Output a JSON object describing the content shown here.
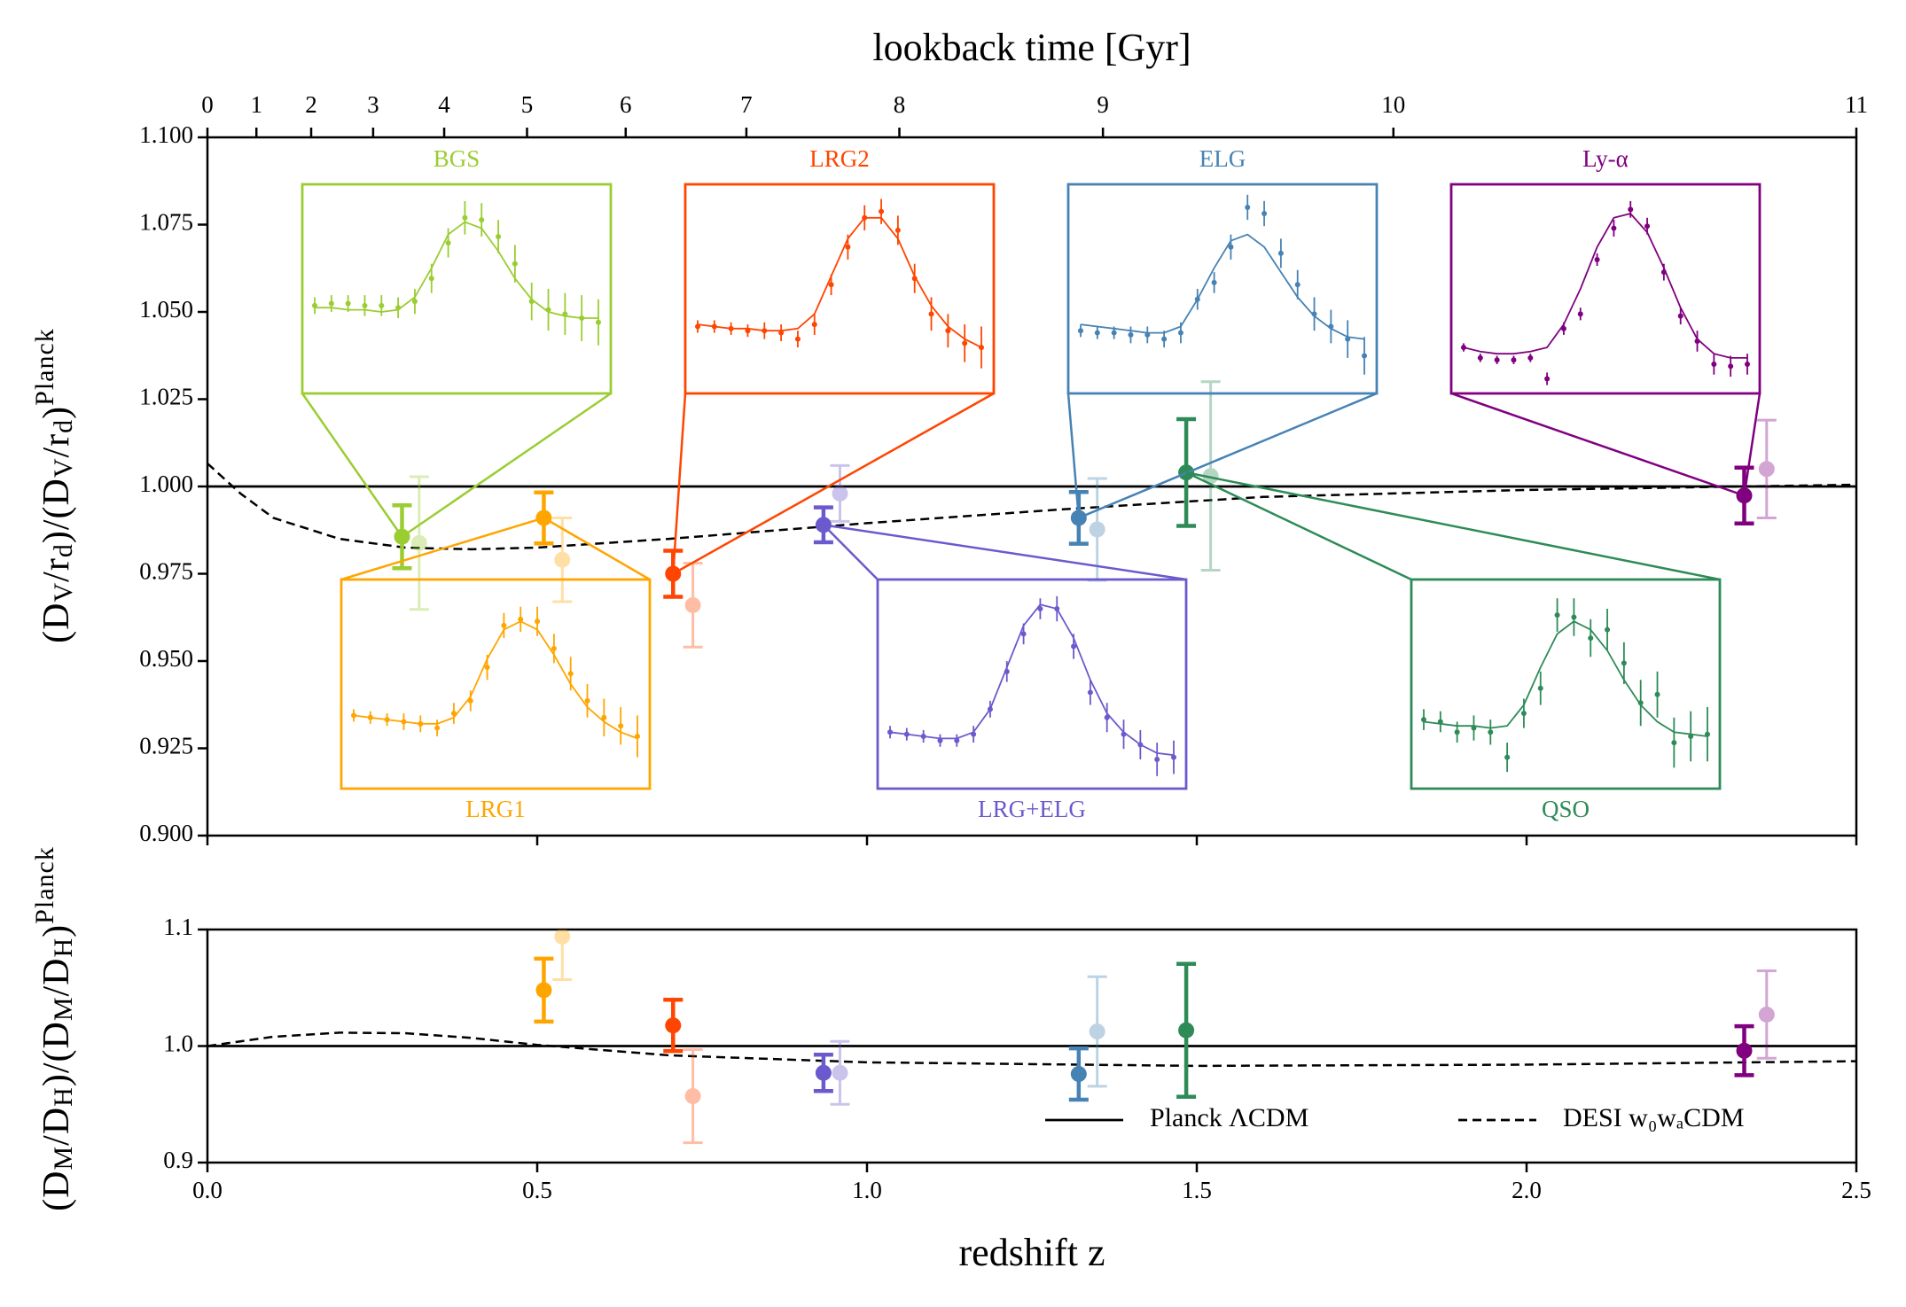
{
  "chart_data": [
    {
      "type": "errorbar",
      "x2label": "lookback time [Gyr]",
      "x2lim": [
        0,
        11
      ],
      "x2ticks": [
        0,
        1,
        2,
        3,
        4,
        5,
        6,
        7,
        8,
        9,
        10,
        11
      ],
      "ylabel": [
        "(D",
        "V",
        "/r",
        "d",
        ")/(D",
        "V",
        "/r",
        "d",
        ")",
        "Planck"
      ],
      "xlim": [
        0,
        2.5
      ],
      "ylim": [
        0.9,
        1.1
      ],
      "yticks": [
        {
          "value": 0.9,
          "label": "0.900"
        },
        0.925,
        {
          "value": 0.95,
          "label": "0.950"
        },
        0.975,
        {
          "value": 1.0,
          "label": "1.000"
        },
        1.025,
        {
          "value": 1.05,
          "label": "1.050"
        },
        1.075,
        {
          "value": 1.1,
          "label": "1.100"
        }
      ],
      "lines": [
        {
          "x": [
            0,
            2.5
          ],
          "values": [
            1,
            1
          ],
          "dash": false
        },
        {
          "x": [
            0,
            0.05,
            0.1,
            0.2,
            0.3,
            0.4,
            0.5,
            0.7,
            1.0,
            1.3,
            1.6,
            2.0,
            2.5
          ],
          "values": [
            1.0066,
            0.998,
            0.991,
            0.985,
            0.9825,
            0.982,
            0.9825,
            0.985,
            0.9895,
            0.9935,
            0.997,
            0.999,
            1.0005
          ],
          "dash": true
        }
      ],
      "series": [
        {
          "name": "BGS",
          "color": "#9acd32",
          "x": [
            0.295,
            0.321
          ],
          "values": [
            0.9856,
            0.9838
          ],
          "errors": [
            0.009,
            0.019
          ],
          "inset": {
            "values": [
              0.42,
              0.43,
              0.43,
              0.42,
              0.42,
              0.41,
              0.44,
              0.55,
              0.72,
              0.84,
              0.83,
              0.75,
              0.62,
              0.44,
              0.4,
              0.38,
              0.36,
              0.34
            ],
            "model": [
              0.41,
              0.41,
              0.4,
              0.4,
              0.39,
              0.4,
              0.46,
              0.6,
              0.76,
              0.82,
              0.79,
              0.68,
              0.55,
              0.45,
              0.39,
              0.37,
              0.36,
              0.36
            ],
            "errors": [
              0.04,
              0.04,
              0.04,
              0.05,
              0.05,
              0.05,
              0.06,
              0.07,
              0.07,
              0.08,
              0.08,
              0.08,
              0.09,
              0.09,
              0.1,
              0.1,
              0.11,
              0.11
            ]
          }
        },
        {
          "name": "LRG1",
          "color": "#ffa500",
          "x": [
            0.51,
            0.538
          ],
          "values": [
            0.991,
            0.979
          ],
          "errors": [
            0.0073,
            0.012
          ],
          "inset": {
            "values": [
              0.35,
              0.34,
              0.33,
              0.32,
              0.31,
              0.29,
              0.36,
              0.42,
              0.58,
              0.78,
              0.81,
              0.8,
              0.67,
              0.55,
              0.42,
              0.34,
              0.3,
              0.25
            ],
            "model": [
              0.35,
              0.34,
              0.33,
              0.32,
              0.31,
              0.31,
              0.34,
              0.44,
              0.62,
              0.76,
              0.8,
              0.76,
              0.64,
              0.5,
              0.39,
              0.32,
              0.27,
              0.24
            ],
            "errors": [
              0.03,
              0.03,
              0.03,
              0.04,
              0.04,
              0.04,
              0.05,
              0.05,
              0.06,
              0.06,
              0.06,
              0.07,
              0.07,
              0.08,
              0.08,
              0.09,
              0.09,
              0.1
            ]
          }
        },
        {
          "name": "LRG2",
          "color": "#ff4500",
          "x": [
            0.706,
            0.736
          ],
          "values": [
            0.975,
            0.966
          ],
          "errors": [
            0.0066,
            0.012
          ],
          "inset": {
            "values": [
              0.32,
              0.32,
              0.31,
              0.3,
              0.3,
              0.29,
              0.26,
              0.33,
              0.52,
              0.7,
              0.84,
              0.87,
              0.78,
              0.55,
              0.38,
              0.3,
              0.24,
              0.22
            ],
            "model": [
              0.33,
              0.32,
              0.31,
              0.31,
              0.3,
              0.3,
              0.31,
              0.38,
              0.56,
              0.74,
              0.84,
              0.84,
              0.74,
              0.56,
              0.42,
              0.32,
              0.26,
              0.22
            ],
            "errors": [
              0.03,
              0.03,
              0.03,
              0.03,
              0.04,
              0.04,
              0.04,
              0.05,
              0.05,
              0.06,
              0.06,
              0.06,
              0.07,
              0.07,
              0.08,
              0.08,
              0.09,
              0.1
            ]
          }
        },
        {
          "name": "LRG+ELG",
          "color": "#6a5acd",
          "x": [
            0.934,
            0.959
          ],
          "values": [
            0.989,
            0.998
          ],
          "errors": [
            0.005,
            0.008
          ],
          "inset": {
            "values": [
              0.27,
              0.26,
              0.25,
              0.23,
              0.23,
              0.26,
              0.38,
              0.56,
              0.74,
              0.86,
              0.86,
              0.68,
              0.46,
              0.34,
              0.26,
              0.21,
              0.14,
              0.15
            ],
            "model": [
              0.27,
              0.26,
              0.25,
              0.24,
              0.24,
              0.27,
              0.38,
              0.58,
              0.78,
              0.88,
              0.86,
              0.72,
              0.52,
              0.36,
              0.27,
              0.21,
              0.17,
              0.16
            ],
            "errors": [
              0.03,
              0.03,
              0.03,
              0.03,
              0.03,
              0.04,
              0.04,
              0.05,
              0.05,
              0.05,
              0.06,
              0.06,
              0.06,
              0.07,
              0.07,
              0.07,
              0.08,
              0.08
            ]
          }
        },
        {
          "name": "ELG",
          "color": "#4682b4",
          "x": [
            1.321,
            1.349
          ],
          "values": [
            0.991,
            0.9877
          ],
          "errors": [
            0.0074,
            0.0146
          ],
          "inset": {
            "values": [
              0.3,
              0.29,
              0.29,
              0.28,
              0.28,
              0.26,
              0.29,
              0.45,
              0.53,
              0.7,
              0.89,
              0.86,
              0.67,
              0.52,
              0.38,
              0.32,
              0.26,
              0.18
            ],
            "model": [
              0.33,
              0.32,
              0.31,
              0.3,
              0.29,
              0.29,
              0.32,
              0.45,
              0.6,
              0.73,
              0.76,
              0.7,
              0.58,
              0.46,
              0.37,
              0.31,
              0.27,
              0.26
            ],
            "errors": [
              0.03,
              0.03,
              0.03,
              0.04,
              0.04,
              0.04,
              0.05,
              0.05,
              0.05,
              0.06,
              0.06,
              0.06,
              0.07,
              0.07,
              0.08,
              0.08,
              0.09,
              0.09
            ]
          }
        },
        {
          "name": "QSO",
          "color": "#2e8b57",
          "x": [
            1.484,
            1.521
          ],
          "values": [
            1.004,
            1.003
          ],
          "errors": [
            0.0153,
            0.027
          ],
          "inset": {
            "values": [
              0.33,
              0.32,
              0.27,
              0.29,
              0.27,
              0.15,
              0.36,
              0.48,
              0.83,
              0.82,
              0.72,
              0.76,
              0.6,
              0.41,
              0.45,
              0.22,
              0.25,
              0.26
            ],
            "model": [
              0.32,
              0.31,
              0.3,
              0.3,
              0.29,
              0.3,
              0.4,
              0.58,
              0.74,
              0.8,
              0.76,
              0.66,
              0.52,
              0.4,
              0.32,
              0.27,
              0.26,
              0.25
            ],
            "errors": [
              0.05,
              0.05,
              0.05,
              0.06,
              0.06,
              0.07,
              0.07,
              0.08,
              0.08,
              0.09,
              0.09,
              0.1,
              0.1,
              0.11,
              0.11,
              0.12,
              0.12,
              0.13
            ]
          }
        },
        {
          "name": "Ly-α",
          "color": "#800080",
          "x": [
            2.33,
            2.364
          ],
          "values": [
            0.9974,
            1.005
          ],
          "errors": [
            0.008,
            0.014
          ],
          "inset": {
            "values": [
              0.22,
              0.17,
              0.16,
              0.16,
              0.17,
              0.07,
              0.31,
              0.38,
              0.64,
              0.79,
              0.88,
              0.8,
              0.58,
              0.37,
              0.25,
              0.14,
              0.13,
              0.14
            ],
            "model": [
              0.22,
              0.2,
              0.19,
              0.19,
              0.2,
              0.22,
              0.33,
              0.5,
              0.7,
              0.84,
              0.86,
              0.77,
              0.6,
              0.41,
              0.26,
              0.19,
              0.17,
              0.17
            ],
            "errors": [
              0.02,
              0.02,
              0.02,
              0.02,
              0.02,
              0.03,
              0.03,
              0.03,
              0.03,
              0.04,
              0.04,
              0.04,
              0.04,
              0.04,
              0.05,
              0.05,
              0.05,
              0.05
            ]
          }
        }
      ]
    },
    {
      "type": "errorbar",
      "xlabel": "redshift z",
      "ylabel": [
        "(D",
        "M",
        "/D",
        "H",
        ")/(D",
        "M",
        "/D",
        "H",
        ")",
        "Planck"
      ],
      "xlim": [
        0,
        2.5
      ],
      "xticks": [
        {
          "value": 0,
          "label": "0.0"
        },
        0.5,
        {
          "value": 1,
          "label": "1.0"
        },
        1.5,
        {
          "value": 2,
          "label": "2.0"
        },
        2.5
      ],
      "ylim": [
        0.9,
        1.1
      ],
      "yticks": [
        0.9,
        {
          "value": 1.0,
          "label": "1.0"
        },
        1.1
      ],
      "legend": "lower right",
      "lines": [
        {
          "name": "Planck ΛCDM",
          "x": [
            0,
            2.5
          ],
          "values": [
            1,
            1
          ],
          "dash": false
        },
        {
          "name": "DESI w₀wₐCDM",
          "x": [
            0,
            0.1,
            0.2,
            0.3,
            0.4,
            0.5,
            0.7,
            1.0,
            1.5,
            2.0,
            2.5
          ],
          "values": [
            1.0,
            1.008,
            1.0115,
            1.011,
            1.007,
            1.001,
            0.992,
            0.986,
            0.983,
            0.984,
            0.987
          ],
          "dash": true
        }
      ],
      "series": [
        {
          "color": "#ffa500",
          "x": [
            0.51,
            0.538
          ],
          "values": [
            1.048,
            1.094
          ],
          "errors": [
            0.027,
            0.037
          ]
        },
        {
          "color": "#ff4500",
          "x": [
            0.706,
            0.736
          ],
          "values": [
            1.0177,
            0.957
          ],
          "errors": [
            0.022,
            0.04
          ]
        },
        {
          "color": "#6a5acd",
          "x": [
            0.934,
            0.959
          ],
          "values": [
            0.977,
            0.977
          ],
          "errors": [
            0.0156,
            0.027
          ]
        },
        {
          "color": "#4682b4",
          "x": [
            1.321,
            1.349
          ],
          "values": [
            0.976,
            1.0125
          ],
          "errors": [
            0.022,
            0.047
          ]
        },
        {
          "color": "#2e8b57",
          "x": [
            1.484
          ],
          "values": [
            1.0135
          ],
          "errors": [
            0.057
          ]
        },
        {
          "color": "#800080",
          "x": [
            2.33,
            2.364
          ],
          "values": [
            0.996,
            1.027
          ],
          "errors": [
            0.021,
            0.0375
          ]
        }
      ]
    }
  ]
}
